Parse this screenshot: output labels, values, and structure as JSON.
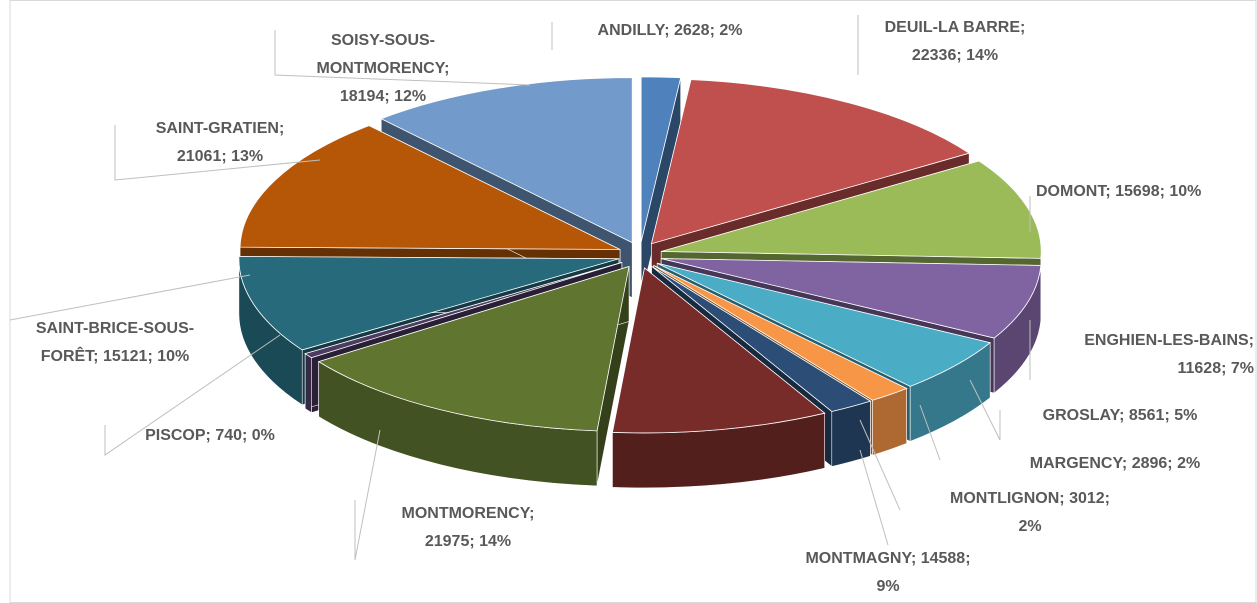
{
  "chart_data": {
    "type": "pie3d",
    "values": [
      2628,
      22336,
      15698,
      11628,
      8561,
      2896,
      3012,
      14588,
      21975,
      740,
      15121,
      21061,
      18194
    ],
    "value_labels": [
      [
        "ANDILLY; 2628; 2%"
      ],
      [
        "DEUIL-LA BARRE;",
        "22336; 14%"
      ],
      [
        "DOMONT; 15698; 10%"
      ],
      [
        "ENGHIEN-LES-BAINS;",
        "11628; 7%"
      ],
      [
        "GROSLAY; 8561; 5%"
      ],
      [
        "MARGENCY; 2896; 2%"
      ],
      [
        "MONTLIGNON; 3012;",
        "2%"
      ],
      [
        "MONTMAGNY; 14588;",
        "9%"
      ],
      [
        "MONTMORENCY;",
        "21975; 14%"
      ],
      [
        "PISCOP; 740; 0%"
      ],
      [
        "SAINT-BRICE-SOUS-",
        "FORÊT; 15121; 10%"
      ],
      [
        "SAINT-GRATIEN;",
        "21061; 13%"
      ],
      [
        "SOISY-SOUS-",
        "MONTMORENCY;",
        "18194; 12%"
      ]
    ],
    "colors": [
      "#4f81bd",
      "#c0504d",
      "#9bbb59",
      "#8064a2",
      "#4bacc6",
      "#f79646",
      "#2c4d75",
      "#772c2a",
      "#5f7530",
      "#4d3b62",
      "#276a7c",
      "#b65708",
      "#729aca"
    ]
  }
}
